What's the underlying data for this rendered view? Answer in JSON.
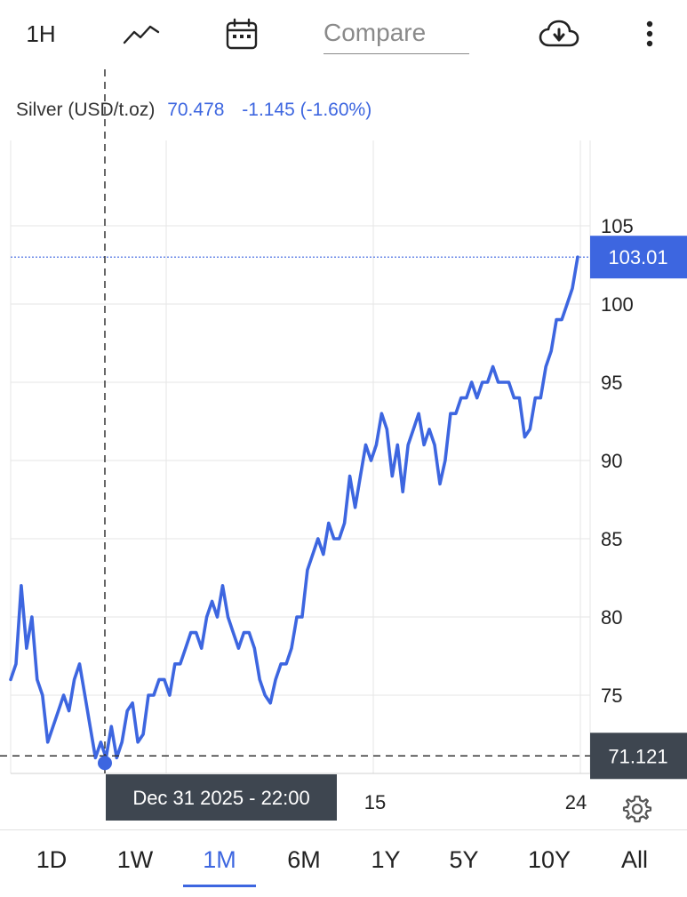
{
  "toolbar": {
    "interval_label": "1H",
    "line_icon": "line-chart-icon",
    "calendar_icon": "calendar-icon",
    "compare_placeholder": "Compare",
    "download_icon": "cloud-download-icon",
    "more_icon": "more-vertical-icon"
  },
  "quote": {
    "name": "Silver (USD/t.oz)",
    "value": "70.478",
    "change": "-1.145 (-1.60%)"
  },
  "price_labels": {
    "last": "103.01",
    "crosshair": "71.121"
  },
  "crosshair": {
    "date_label": "Dec 31 2025 - 22:00"
  },
  "colors": {
    "line": "#3d66e0",
    "label_blue": "#3d66e0",
    "label_dark": "#3e4650"
  },
  "bottom_tabs": {
    "items": [
      "1D",
      "1W",
      "1M",
      "6M",
      "1Y",
      "5Y",
      "10Y",
      "All"
    ],
    "active": "1M"
  },
  "settings_icon": "gear-icon",
  "chart_data": {
    "type": "line",
    "title": "",
    "xlabel": "",
    "ylabel": "",
    "y_ticks": [
      75,
      80,
      85,
      90,
      95,
      100,
      105
    ],
    "x_tick_labels": [
      "15",
      "24"
    ],
    "ylim": [
      70,
      105.6
    ],
    "grid": true,
    "series": [
      {
        "values": [
          76,
          77,
          82,
          78,
          80,
          76,
          75,
          72,
          73,
          74,
          75,
          74,
          76,
          77,
          75,
          73,
          71,
          72,
          71,
          73,
          71,
          72,
          74,
          74.5,
          72,
          72.5,
          75,
          75,
          76,
          76,
          75,
          77,
          77,
          78,
          79,
          79,
          78,
          80,
          81,
          80,
          82,
          80,
          79,
          78,
          79,
          79,
          78,
          76,
          75,
          74.5,
          76,
          77,
          77,
          78,
          80,
          80,
          83,
          84,
          85,
          84,
          86,
          85,
          85,
          86,
          89,
          87,
          89,
          91,
          90,
          91,
          93,
          92,
          89,
          91,
          88,
          91,
          92,
          93,
          91,
          92,
          91,
          88.5,
          90,
          93,
          93,
          94,
          94,
          95,
          94,
          95,
          95,
          96,
          95,
          95,
          95,
          94,
          94,
          91.5,
          92,
          94,
          94,
          96,
          97,
          99,
          99,
          100,
          101,
          103
        ]
      }
    ]
  }
}
